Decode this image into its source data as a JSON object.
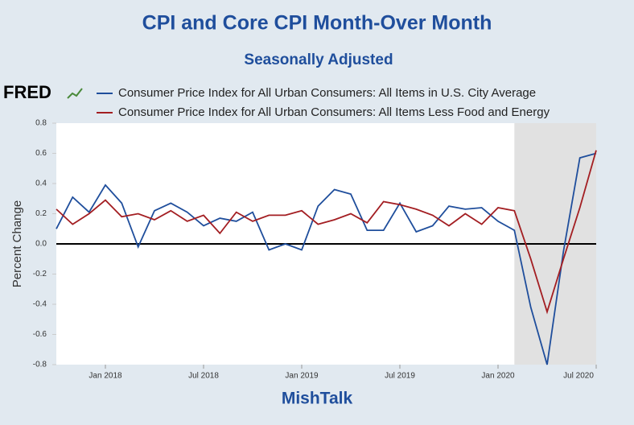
{
  "chart_data": {
    "type": "line",
    "title": "CPI and Core CPI Month-Over Month",
    "subtitle": "Seasonally Adjusted",
    "brand": "FRED",
    "ylabel": "Percent Change",
    "footer": "MishTalk",
    "x": [
      "2017-10",
      "2017-11",
      "2017-12",
      "2018-01",
      "2018-02",
      "2018-03",
      "2018-04",
      "2018-05",
      "2018-06",
      "2018-07",
      "2018-08",
      "2018-09",
      "2018-10",
      "2018-11",
      "2018-12",
      "2019-01",
      "2019-02",
      "2019-03",
      "2019-04",
      "2019-05",
      "2019-06",
      "2019-07",
      "2019-08",
      "2019-09",
      "2019-10",
      "2019-11",
      "2019-12",
      "2020-01",
      "2020-02",
      "2020-03",
      "2020-04",
      "2020-05",
      "2020-06",
      "2020-07"
    ],
    "xticks": [
      {
        "value": "2018-01",
        "label": "Jan 2018"
      },
      {
        "value": "2018-07",
        "label": "Jul 2018"
      },
      {
        "value": "2019-01",
        "label": "Jan 2019"
      },
      {
        "value": "2019-07",
        "label": "Jul 2019"
      },
      {
        "value": "2020-01",
        "label": "Jan 2020"
      },
      {
        "value": "2020-07",
        "label": "Jul 2020"
      }
    ],
    "shaded_region": [
      "2020-02",
      "2020-07"
    ],
    "shade_color": "#e1e1e1",
    "ylim": [
      -0.8,
      0.8
    ],
    "yticks": [
      0.8,
      0.6,
      0.4,
      0.2,
      {
        "value": 0,
        "label": "0.0"
      },
      -0.2,
      -0.4,
      -0.6,
      -0.8
    ],
    "grid": false,
    "series": [
      {
        "name": "Consumer Price Index for All Urban Consumers: All Items in U.S. City Average",
        "color": "#1f4e9c",
        "values": [
          0.1,
          0.31,
          0.21,
          0.39,
          0.27,
          -0.02,
          0.22,
          0.27,
          0.21,
          0.12,
          0.17,
          0.15,
          0.21,
          -0.04,
          0.0,
          -0.04,
          0.25,
          0.36,
          0.33,
          0.09,
          0.09,
          0.27,
          0.08,
          0.12,
          0.25,
          0.23,
          0.24,
          0.15,
          0.09,
          -0.42,
          -0.8,
          -0.05,
          0.57,
          0.6
        ]
      },
      {
        "name": "Consumer Price Index for All Urban Consumers: All Items Less Food and Energy",
        "color": "#a31e22",
        "values": [
          0.23,
          0.13,
          0.2,
          0.29,
          0.18,
          0.2,
          0.16,
          0.22,
          0.15,
          0.19,
          0.07,
          0.21,
          0.15,
          0.19,
          0.19,
          0.22,
          0.13,
          0.16,
          0.2,
          0.14,
          0.28,
          0.26,
          0.23,
          0.19,
          0.12,
          0.2,
          0.13,
          0.24,
          0.22,
          -0.1,
          -0.45,
          -0.1,
          0.24,
          0.62
        ]
      }
    ]
  }
}
